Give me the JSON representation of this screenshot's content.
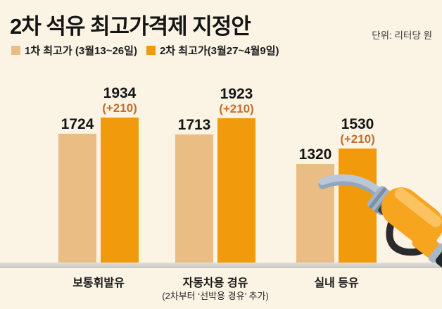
{
  "header": {
    "title": "2차 석유 최고가격제 지정안",
    "unit": "단위: 리터당 원"
  },
  "legend": {
    "items": [
      {
        "label": "1차 최고가 (3월13~26일)",
        "color": "#EABD84"
      },
      {
        "label": "2차 최고가(3월27~4월9일)",
        "color": "#F19B0C"
      }
    ]
  },
  "chart_data": {
    "type": "bar",
    "title": "2차 석유 최고가격제 지정안",
    "unit_label": "단위: 리터당 원",
    "categories": [
      "보통휘발유",
      "자동차용 경유",
      "실내 등유"
    ],
    "category_notes": [
      "",
      "(2차부터 ‘선박용 경유’ 추가)",
      ""
    ],
    "series": [
      {
        "name": "1차 최고가 (3월13~26일)",
        "color": "#EABD84",
        "values": [
          1724,
          1713,
          1320
        ]
      },
      {
        "name": "2차 최고가(3월27~4월9일)",
        "color": "#F19B0C",
        "values": [
          1934,
          1923,
          1530
        ],
        "delta_labels": [
          "(+210)",
          "(+210)",
          "(+210)"
        ]
      }
    ],
    "ylim": [
      0,
      2000
    ],
    "grid": false,
    "legend_position": "top-left",
    "baseline_axis": true
  },
  "illustration": {
    "name": "fuel-pump-nozzle",
    "colors": {
      "body": "#F7A41F",
      "body_highlight": "#FBC35F",
      "hose": "#B9C7D7",
      "hose_shadow": "#92A6BA",
      "collar": "#383D44",
      "ribs": "#A3B4C6",
      "trigger": "#2B2B2B",
      "band": "#A9B8C6",
      "tip": "#23262B"
    }
  },
  "colors": {
    "background": "#FBF3E4",
    "baseline": "#D5D4CE",
    "delta_text": "#C26E2C",
    "value_text": "#151515"
  }
}
